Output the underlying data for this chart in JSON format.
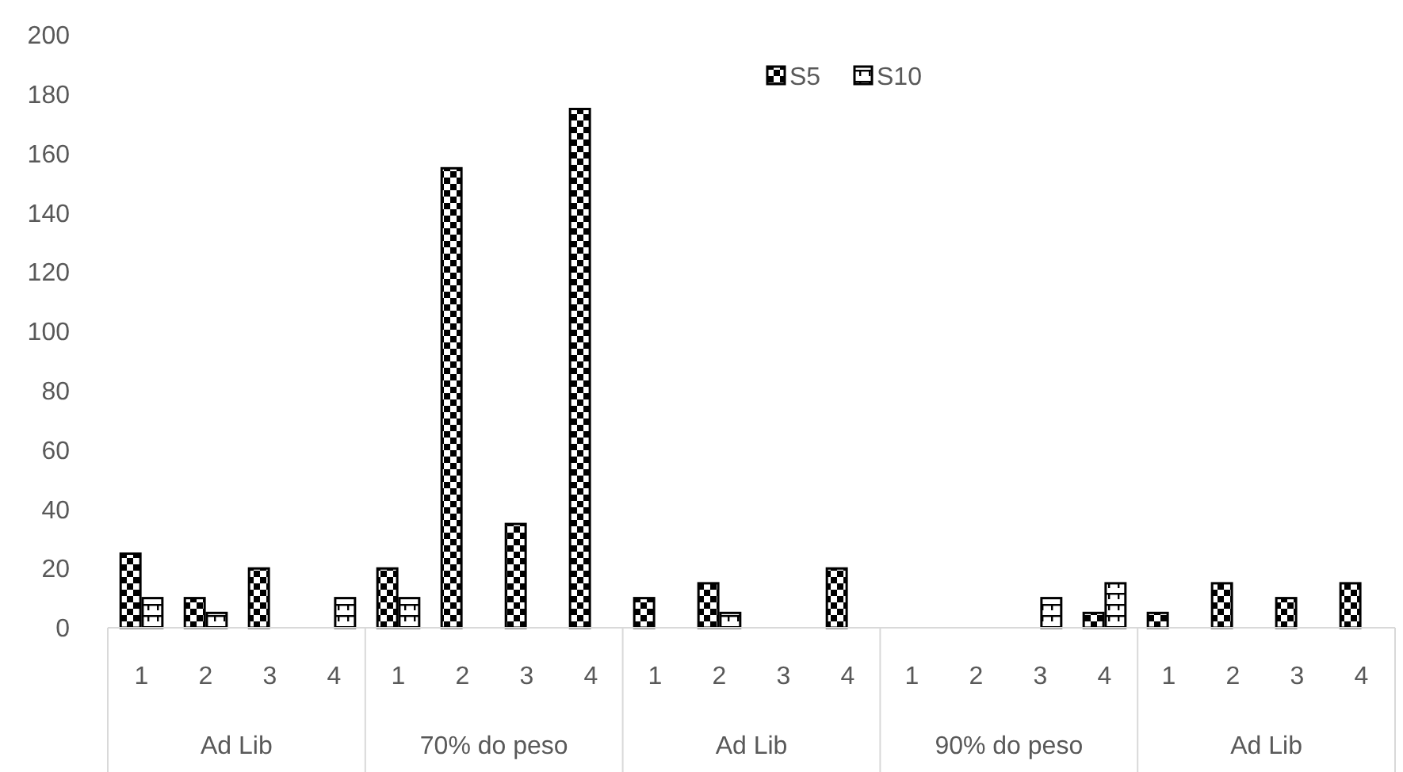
{
  "chart_data": {
    "type": "bar",
    "categories": [
      "1",
      "2",
      "3",
      "4",
      "1",
      "2",
      "3",
      "4",
      "1",
      "2",
      "3",
      "4",
      "1",
      "2",
      "3",
      "4",
      "1",
      "2",
      "3",
      "4"
    ],
    "series": [
      {
        "name": "S5",
        "color": "#000000",
        "values": [
          25,
          10,
          20,
          0,
          20,
          155,
          35,
          175,
          10,
          15,
          0,
          20,
          0,
          0,
          0,
          5,
          5,
          15,
          10,
          15
        ]
      },
      {
        "name": "S10",
        "color": "#000000",
        "values": [
          10,
          5,
          0,
          10,
          10,
          0,
          0,
          0,
          0,
          5,
          0,
          0,
          0,
          0,
          10,
          15,
          0,
          0,
          0,
          0
        ]
      }
    ],
    "annotations": [
      "Ad Lib",
      "70% do peso",
      "Ad Lib",
      "90% do peso",
      "Ad Lib"
    ],
    "ylim": [
      0,
      200
    ],
    "yticks": [
      0,
      20,
      40,
      60,
      80,
      100,
      120,
      140,
      160,
      180,
      200
    ],
    "legend": "top"
  }
}
